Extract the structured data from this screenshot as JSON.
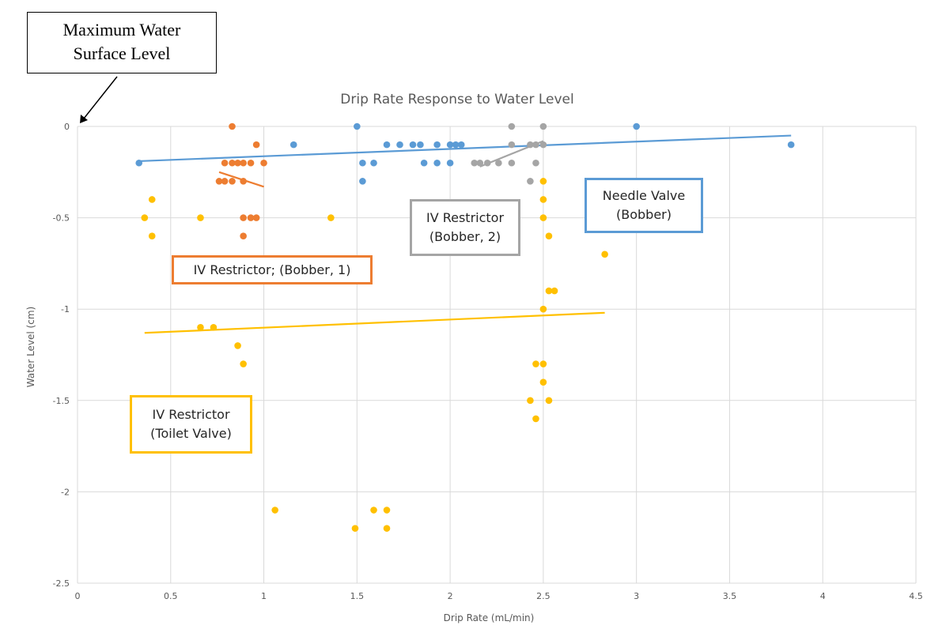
{
  "callout": {
    "line1": "Maximum Water",
    "line2": "Surface Level"
  },
  "chart_data": {
    "type": "scatter",
    "title": "Drip Rate Response to Water Level",
    "xlabel": "Drip Rate (mL/min)",
    "ylabel": "Water Level (cm)",
    "xlim": [
      0,
      4.5
    ],
    "ylim": [
      -2.5,
      0
    ],
    "xticks": [
      "0",
      "0.5",
      "1",
      "1.5",
      "2",
      "2.5",
      "3",
      "3.5",
      "4",
      "4.5"
    ],
    "yticks": [
      "0",
      "-0.5",
      "-1",
      "-1.5",
      "-2",
      "-2.5"
    ],
    "grid": true,
    "series": [
      {
        "key": "needle",
        "name_lines": [
          "Needle Valve",
          "(Bobber)"
        ],
        "color": "#5B9BD5",
        "points": [
          [
            0.33,
            -0.2
          ],
          [
            1.16,
            -0.1
          ],
          [
            1.5,
            0
          ],
          [
            1.53,
            -0.2
          ],
          [
            1.53,
            -0.3
          ],
          [
            1.59,
            -0.2
          ],
          [
            1.66,
            -0.1
          ],
          [
            1.73,
            -0.1
          ],
          [
            1.8,
            -0.1
          ],
          [
            1.84,
            -0.1
          ],
          [
            1.86,
            -0.2
          ],
          [
            1.93,
            -0.1
          ],
          [
            1.93,
            -0.2
          ],
          [
            2.0,
            -0.1
          ],
          [
            2.0,
            -0.2
          ],
          [
            2.03,
            -0.1
          ],
          [
            2.06,
            -0.1
          ],
          [
            3.0,
            0
          ],
          [
            3.83,
            -0.1
          ]
        ],
        "trend": [
          [
            0.33,
            -0.19
          ],
          [
            3.83,
            -0.05
          ]
        ]
      },
      {
        "key": "iv1",
        "name_lines": [
          "IV Restrictor; (Bobber, 1)"
        ],
        "color": "#ED7D31",
        "points": [
          [
            0.83,
            0
          ],
          [
            0.96,
            -0.1
          ],
          [
            0.79,
            -0.2
          ],
          [
            0.83,
            -0.2
          ],
          [
            0.86,
            -0.2
          ],
          [
            0.89,
            -0.2
          ],
          [
            0.93,
            -0.2
          ],
          [
            1.0,
            -0.2
          ],
          [
            0.76,
            -0.3
          ],
          [
            0.79,
            -0.3
          ],
          [
            0.83,
            -0.3
          ],
          [
            0.89,
            -0.3
          ],
          [
            0.89,
            -0.5
          ],
          [
            0.93,
            -0.5
          ],
          [
            0.96,
            -0.5
          ],
          [
            0.89,
            -0.6
          ]
        ],
        "trend": [
          [
            0.76,
            -0.25
          ],
          [
            1.0,
            -0.33
          ]
        ]
      },
      {
        "key": "iv2",
        "name_lines": [
          "IV Restrictor",
          "(Bobber, 2)"
        ],
        "color": "#A5A5A5",
        "points": [
          [
            2.33,
            0
          ],
          [
            2.5,
            0
          ],
          [
            2.33,
            -0.1
          ],
          [
            2.43,
            -0.1
          ],
          [
            2.46,
            -0.1
          ],
          [
            2.5,
            -0.1
          ],
          [
            2.13,
            -0.2
          ],
          [
            2.16,
            -0.2
          ],
          [
            2.2,
            -0.2
          ],
          [
            2.26,
            -0.2
          ],
          [
            2.33,
            -0.2
          ],
          [
            2.46,
            -0.2
          ],
          [
            2.43,
            -0.3
          ]
        ],
        "trend": [
          [
            2.16,
            -0.22
          ],
          [
            2.5,
            -0.08
          ]
        ]
      },
      {
        "key": "toilet",
        "name_lines": [
          "IV Restrictor",
          "(Toilet Valve)"
        ],
        "color": "#FFC000",
        "points": [
          [
            0.36,
            -0.5
          ],
          [
            0.4,
            -0.4
          ],
          [
            0.4,
            -0.6
          ],
          [
            0.66,
            -0.5
          ],
          [
            0.66,
            -1.1
          ],
          [
            0.73,
            -1.1
          ],
          [
            0.86,
            -1.2
          ],
          [
            0.89,
            -1.3
          ],
          [
            1.06,
            -2.1
          ],
          [
            1.36,
            -0.5
          ],
          [
            1.49,
            -2.2
          ],
          [
            1.59,
            -2.1
          ],
          [
            1.66,
            -2.1
          ],
          [
            1.66,
            -2.2
          ],
          [
            2.43,
            -1.5
          ],
          [
            2.46,
            -1.3
          ],
          [
            2.46,
            -1.6
          ],
          [
            2.5,
            -0.3
          ],
          [
            2.5,
            -0.4
          ],
          [
            2.5,
            -0.5
          ],
          [
            2.5,
            -1.0
          ],
          [
            2.5,
            -1.3
          ],
          [
            2.5,
            -1.4
          ],
          [
            2.53,
            -0.6
          ],
          [
            2.53,
            -0.9
          ],
          [
            2.53,
            -1.5
          ],
          [
            2.56,
            -0.9
          ],
          [
            2.83,
            -0.7
          ]
        ],
        "trend": [
          [
            0.36,
            -1.13
          ],
          [
            2.83,
            -1.02
          ]
        ]
      }
    ]
  }
}
